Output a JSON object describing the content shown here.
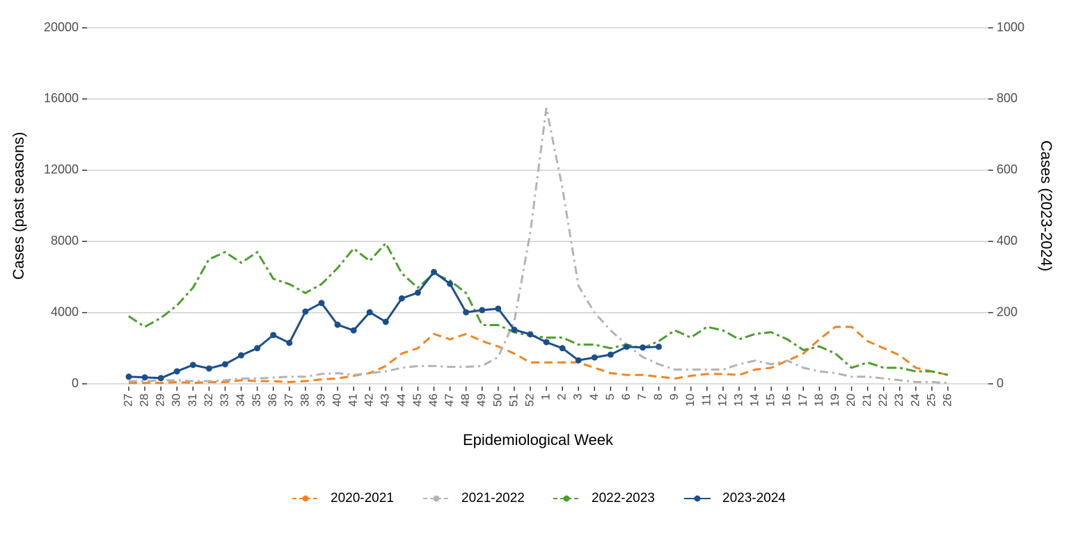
{
  "chart_data": {
    "type": "line",
    "x_label": "Epidemiological Week",
    "y_label": "Cases (past seasons)",
    "y2_label": "Cases (2023-2024)",
    "categories": [
      "27",
      "28",
      "29",
      "30",
      "31",
      "32",
      "33",
      "34",
      "35",
      "36",
      "37",
      "38",
      "39",
      "40",
      "41",
      "42",
      "43",
      "44",
      "45",
      "46",
      "47",
      "48",
      "49",
      "50",
      "51",
      "52",
      "1",
      "2",
      "3",
      "4",
      "5",
      "6",
      "7",
      "8",
      "9",
      "10",
      "11",
      "12",
      "13",
      "14",
      "15",
      "16",
      "17",
      "18",
      "19",
      "20",
      "21",
      "22",
      "23",
      "24",
      "25",
      "26"
    ],
    "ylim": [
      0,
      20000
    ],
    "yticks": [
      0,
      4000,
      8000,
      12000,
      16000,
      20000
    ],
    "y2lim": [
      0,
      1000
    ],
    "y2ticks": [
      0,
      200,
      400,
      600,
      800,
      1000
    ],
    "grid": true,
    "legend": "bottom",
    "series": [
      {
        "name": "2020-2021",
        "color": "#f5831f",
        "linestyle": "dashed",
        "markers": false,
        "values": [
          50,
          50,
          50,
          100,
          50,
          100,
          100,
          200,
          150,
          150,
          100,
          150,
          250,
          300,
          450,
          600,
          1000,
          1700,
          2000,
          2800,
          2500,
          2800,
          2400,
          2100,
          1700,
          1200,
          1200,
          1200,
          1200,
          900,
          600,
          500,
          500,
          400,
          300,
          450,
          550,
          550,
          500,
          800,
          900,
          1300,
          1700,
          2500,
          3200,
          3200,
          2400,
          2000,
          1600,
          900,
          700,
          500
        ]
      },
      {
        "name": "2021-2022",
        "color": "#b3b3b3",
        "linestyle": "dashdot",
        "markers": false,
        "values": [
          150,
          150,
          200,
          200,
          150,
          150,
          200,
          300,
          300,
          350,
          400,
          400,
          550,
          600,
          500,
          600,
          700,
          900,
          1000,
          1000,
          950,
          950,
          1000,
          1500,
          3500,
          8500,
          15500,
          11000,
          5500,
          4000,
          3000,
          2200,
          1500,
          1100,
          800,
          800,
          800,
          800,
          1100,
          1300,
          1100,
          1300,
          900,
          700,
          600,
          400,
          400,
          300,
          200,
          100,
          100,
          50
        ]
      },
      {
        "name": "2022-2023",
        "color": "#4aa02c",
        "linestyle": "longdash",
        "markers": false,
        "values": [
          3800,
          3200,
          3700,
          4400,
          5400,
          7000,
          7400,
          6800,
          7400,
          5900,
          5600,
          5100,
          5600,
          6500,
          7600,
          6900,
          7900,
          6200,
          5400,
          6200,
          5800,
          5100,
          3300,
          3300,
          2900,
          2700,
          2600,
          2600,
          2200,
          2200,
          2000,
          2200,
          2000,
          2400,
          3000,
          2600,
          3200,
          3000,
          2500,
          2800,
          2900,
          2500,
          1900,
          2100,
          1700,
          900,
          1200,
          900,
          900,
          700,
          700,
          500
        ]
      },
      {
        "name": "2023-2024",
        "color": "#1b4f8c",
        "linestyle": "solid",
        "markers": true,
        "axis": "y2",
        "values": [
          20,
          18,
          16,
          35,
          53,
          43,
          55,
          80,
          100,
          137,
          115,
          203,
          227,
          166,
          150,
          201,
          174,
          240,
          256,
          314,
          281,
          201,
          207,
          211,
          152,
          139,
          117,
          100,
          66,
          74,
          82,
          104,
          102,
          104,
          null,
          null,
          null,
          null,
          null,
          null,
          null,
          null,
          null,
          null,
          null,
          null,
          null,
          null,
          null,
          null,
          null,
          null
        ]
      }
    ]
  }
}
